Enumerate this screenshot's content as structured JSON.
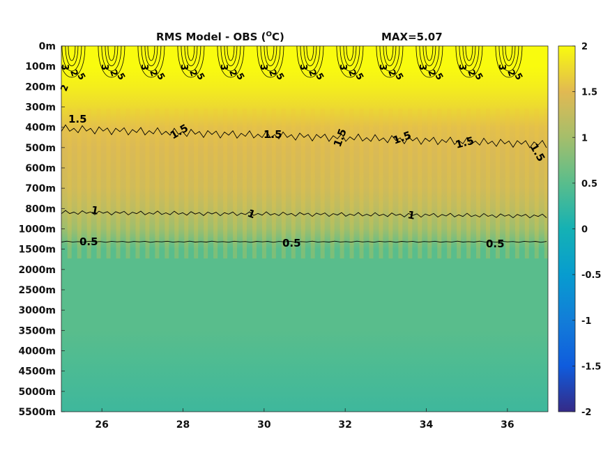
{
  "chart_data": {
    "type": "heatmap",
    "title": "RMS Model - OBS (",
    "title_super": "O",
    "title_unit": "C)",
    "max_label": "MAX=5.07",
    "xlabel": "",
    "ylabel": "",
    "xlim": [
      25,
      37
    ],
    "x_ticks": [
      26,
      28,
      30,
      32,
      34,
      36
    ],
    "x_tick_labels": [
      "26",
      "28",
      "30",
      "32",
      "34",
      "36"
    ],
    "depth_levels": [
      "0m",
      "100m",
      "200m",
      "300m",
      "400m",
      "500m",
      "600m",
      "700m",
      "800m",
      "1000m",
      "1500m",
      "2000m",
      "2500m",
      "3000m",
      "3500m",
      "4000m",
      "4500m",
      "5000m",
      "5500m"
    ],
    "colorbar": {
      "limits": [
        -2,
        2
      ],
      "ticks": [
        2,
        1.5,
        1,
        0.5,
        0,
        -0.5,
        -1,
        -1.5,
        -2
      ],
      "tick_labels": [
        "2",
        "1.5",
        "1",
        "0.5",
        "0",
        "-0.5",
        "-1",
        "-1.5",
        "-2"
      ],
      "colormap": "parula"
    },
    "depth_profile": {
      "depths": [
        "0m",
        "100m",
        "200m",
        "300m",
        "400m",
        "500m",
        "600m",
        "700m",
        "800m",
        "1000m",
        "1500m",
        "2000m",
        "2500m",
        "3000m",
        "3500m",
        "4000m",
        "4500m",
        "5000m",
        "5500m"
      ],
      "rms_values": [
        2.0,
        2.0,
        1.9,
        1.75,
        1.55,
        1.45,
        1.4,
        1.35,
        1.2,
        0.95,
        0.5,
        0.5,
        0.5,
        0.5,
        0.5,
        0.45,
        0.4,
        0.35,
        0.3
      ]
    },
    "contours": [
      {
        "level": 2,
        "label": "2"
      },
      {
        "level": 1.5,
        "label": "1.5"
      },
      {
        "level": 1,
        "label": "1"
      },
      {
        "level": 0.5,
        "label": "0.5"
      }
    ],
    "contour_label_text": {
      "upper_2": "2",
      "upper_3": "3",
      "upper_5": "5",
      "l15": "1.5",
      "l1": "1",
      "l05": "0.5"
    }
  }
}
